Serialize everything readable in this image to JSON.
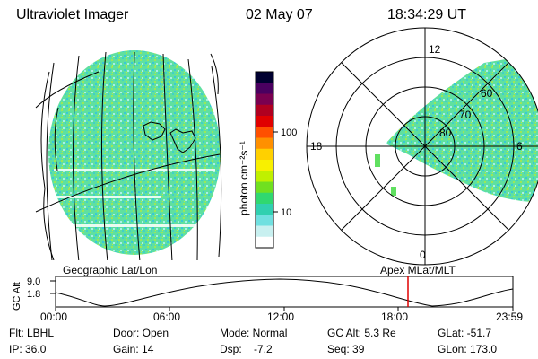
{
  "header": {
    "instrument": "Ultraviolet Imager",
    "date": "02 May 07",
    "time": "18:34:29 UT"
  },
  "colorbar": {
    "unit_label": "photon cm⁻²s⁻¹",
    "ticks": [
      "100",
      "10"
    ],
    "colors": [
      "#000030",
      "#4a0060",
      "#7a0050",
      "#b00020",
      "#e00000",
      "#ff5000",
      "#ff9000",
      "#ffd000",
      "#f8f000",
      "#c0f000",
      "#70e020",
      "#30d870",
      "#30d0b0",
      "#70e0e0",
      "#c8f0f0",
      "#ffffff"
    ]
  },
  "left_map": {
    "label": "Geographic Lat/Lon"
  },
  "polar_plot": {
    "label": "Apex MLat/MLT",
    "mlt_labels": {
      "top": "12",
      "left": "18",
      "right": "6",
      "bottom": "0"
    },
    "lat_labels": [
      "60",
      "70",
      "80"
    ]
  },
  "altitude_plot": {
    "ylabel": "GC Alt",
    "yticks": [
      "9.0",
      "1.8"
    ],
    "xticks": [
      "00:00",
      "06:00",
      "12:00",
      "18:00",
      "23:59"
    ],
    "marker_time": "18:34"
  },
  "status": {
    "filter": "Flt: LBHL",
    "door": "Door: Open",
    "mode": "Mode: Normal",
    "gc_alt": "GC Alt: 5.3 Re",
    "glat": "GLat: -51.7",
    "ip": "IP: 36.0",
    "gain": "Gain: 14",
    "dsp": "Dsp:    -7.2",
    "seq": "Seq: 39",
    "glon": "GLon: 173.0"
  }
}
